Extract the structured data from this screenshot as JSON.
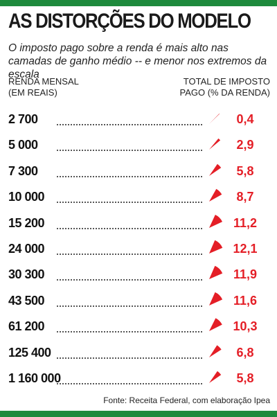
{
  "title": "AS DISTORÇÕES DO MODELO",
  "subtitle": "O  imposto pago sobre a renda é mais alto nas camadas de ganho médio -- e menor nos extremos da escala",
  "left_header": {
    "line1": "RENDA MENSAL",
    "line2": "(EM REAIS)"
  },
  "right_header": {
    "line1": "TOTAL DE IMPOSTO",
    "line2": "PAGO (% DA RENDA)"
  },
  "source": "Fonte: Receita Federal, com elaboração Ipea",
  "colors": {
    "brand_green": "#1e8a3c",
    "accent_red": "#e41e26"
  },
  "chart_data": {
    "type": "table",
    "title": "AS DISTORÇÕES DO MODELO",
    "rows": [
      {
        "income": "2 700",
        "pct": 0.4,
        "label": "0,4"
      },
      {
        "income": "5 000",
        "pct": 2.9,
        "label": "2,9"
      },
      {
        "income": "7 300",
        "pct": 5.8,
        "label": "5,8"
      },
      {
        "income": "10 000",
        "pct": 8.7,
        "label": "8,7"
      },
      {
        "income": "15 200",
        "pct": 11.2,
        "label": "11,2"
      },
      {
        "income": "24 000",
        "pct": 12.1,
        "label": "12,1"
      },
      {
        "income": "30 300",
        "pct": 11.9,
        "label": "11,9"
      },
      {
        "income": "43 500",
        "pct": 11.6,
        "label": "11,6"
      },
      {
        "income": "61 200",
        "pct": 10.3,
        "label": "10,3"
      },
      {
        "income": "125 400",
        "pct": 6.8,
        "label": "6,8"
      },
      {
        "income": "1 160 000",
        "pct": 5.8,
        "label": "5,8"
      }
    ]
  }
}
